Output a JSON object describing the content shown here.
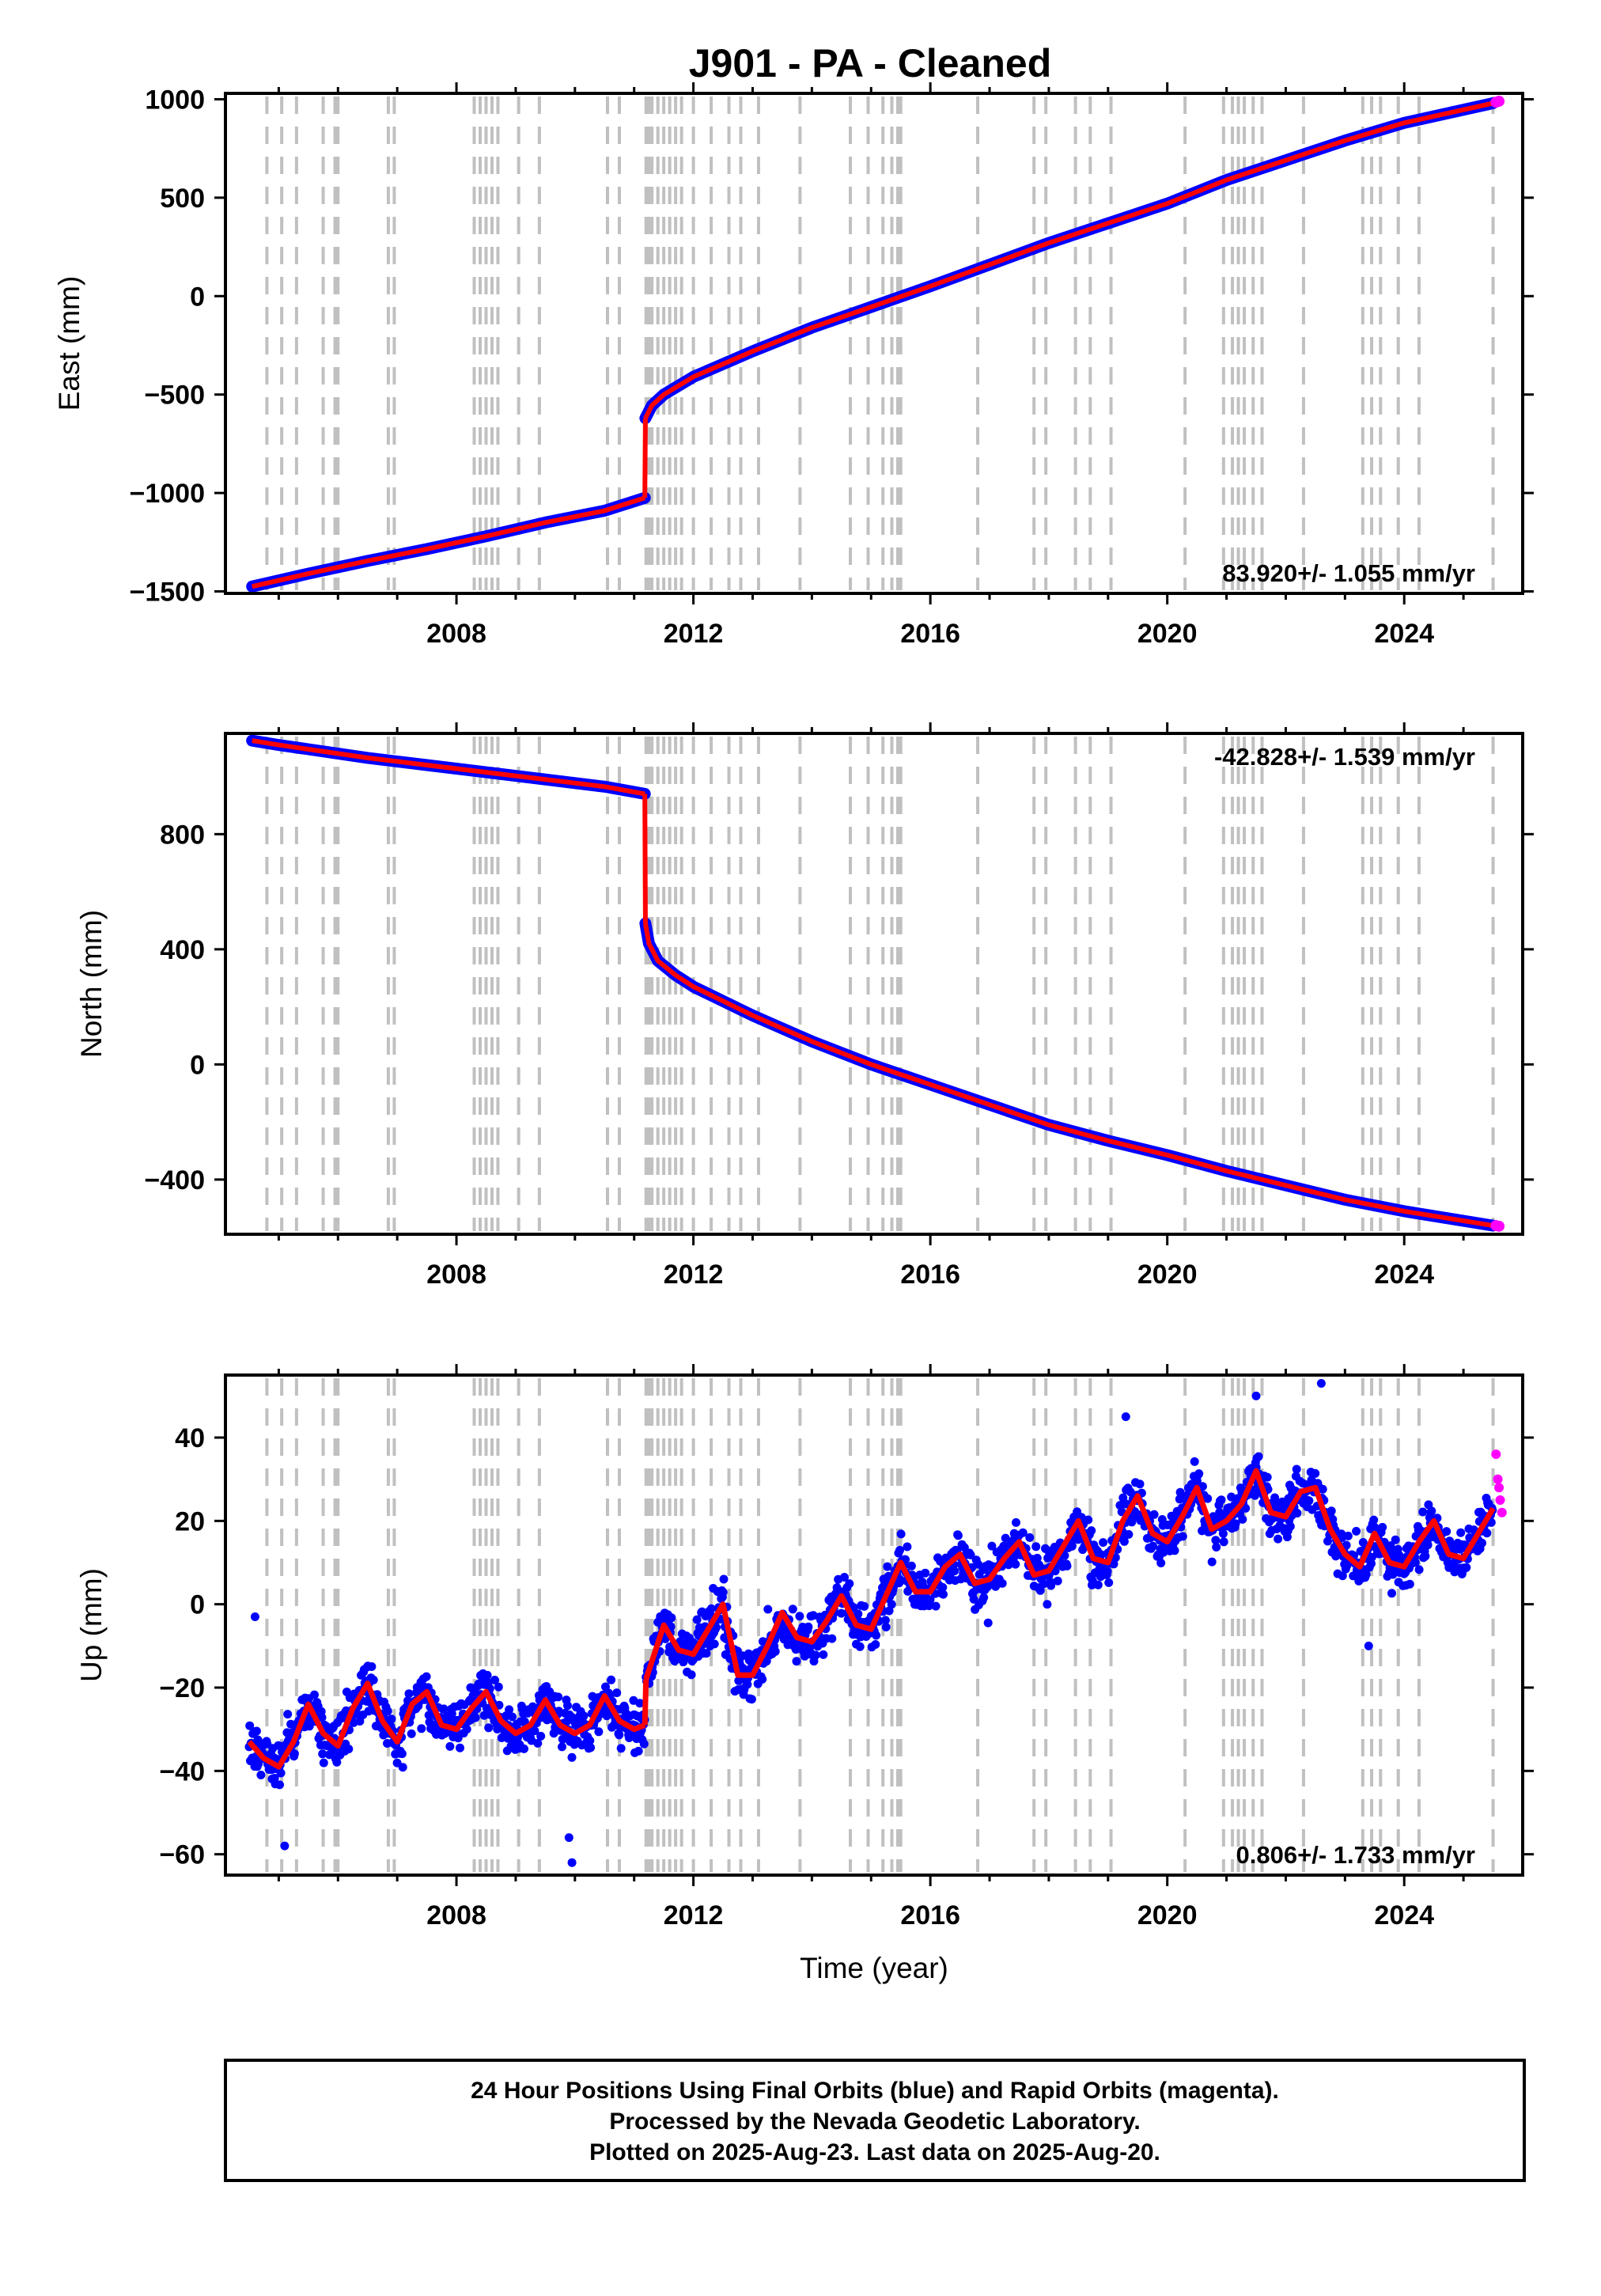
{
  "title": "J901  - PA - Cleaned",
  "colors": {
    "final": "#0000ff",
    "rapid": "#ff00ff",
    "trend": "#ff0000",
    "event_line": "#c0c0c0",
    "frame": "#000000"
  },
  "footer": {
    "line1": "24 Hour Positions Using Final Orbits (blue) and Rapid Orbits (magenta).",
    "line2": "Processed by the Nevada Geodetic Laboratory.",
    "line3": "Plotted on 2025-Aug-23. Last data on 2025-Aug-20."
  },
  "event_lines_years": [
    2004.8,
    2005.05,
    2005.3,
    2005.75,
    2005.95,
    2006.0,
    2006.85,
    2006.95,
    2008.3,
    2008.4,
    2008.5,
    2008.6,
    2008.7,
    2009.05,
    2009.4,
    2010.55,
    2010.75,
    2011.2,
    2011.25,
    2011.3,
    2011.4,
    2011.5,
    2011.6,
    2011.7,
    2011.8,
    2012.0,
    2012.3,
    2012.6,
    2012.8,
    2013.1,
    2013.8,
    2014.65,
    2014.95,
    2015.2,
    2015.35,
    2015.45,
    2015.5,
    2016.8,
    2017.75,
    2017.95,
    2018.45,
    2018.7,
    2019.05,
    2020.3,
    2020.95,
    2021.1,
    2021.2,
    2021.3,
    2021.45,
    2021.6,
    2022.3,
    2023.3,
    2023.45,
    2023.6,
    2023.9,
    2024.25,
    2025.5
  ],
  "chart_data": [
    {
      "type": "scatter",
      "component": "East",
      "ylabel": "East (mm)",
      "xlabel": "",
      "xlim": [
        2004.1,
        2026.0
      ],
      "ylim": [
        -1510,
        1030
      ],
      "x_ticks": [
        2008,
        2012,
        2016,
        2020,
        2024
      ],
      "y_ticks": [
        -1500,
        -1000,
        -500,
        0,
        500,
        1000
      ],
      "rate_text": "83.920+/- 1.055 mm/yr",
      "rate_position": "bottom-right",
      "series": [
        {
          "role": "final",
          "x": [
            2004.55,
            2005.5,
            2006.5,
            2007.5,
            2008.5,
            2009.5,
            2010.5,
            2011.18
          ],
          "y": [
            -1475,
            -1410,
            -1345,
            -1285,
            -1220,
            -1150,
            -1090,
            -1025
          ]
        },
        {
          "role": "final",
          "x": [
            2011.19,
            2011.3,
            2011.5,
            2012.0,
            2013.0,
            2014.0,
            2015.0,
            2016.0,
            2017.0,
            2018.0,
            2019.0,
            2020.0,
            2021.0,
            2022.0,
            2023.0,
            2024.0,
            2025.5
          ],
          "y": [
            -620,
            -555,
            -500,
            -410,
            -280,
            -160,
            -55,
            50,
            160,
            270,
            370,
            470,
            590,
            690,
            790,
            880,
            980
          ]
        },
        {
          "role": "rapid",
          "x": [
            2025.55,
            2025.6
          ],
          "y": [
            985,
            990
          ]
        }
      ]
    },
    {
      "type": "scatter",
      "component": "North",
      "ylabel": "North (mm)",
      "xlabel": "",
      "xlim": [
        2004.1,
        2026.0
      ],
      "ylim": [
        -590,
        1150
      ],
      "x_ticks": [
        2008,
        2012,
        2016,
        2020,
        2024
      ],
      "y_ticks": [
        -400,
        0,
        400,
        800
      ],
      "rate_text": "-42.828+/- 1.539 mm/yr",
      "rate_position": "top-right",
      "series": [
        {
          "role": "final",
          "x": [
            2004.55,
            2005.0,
            2005.5,
            2006.5,
            2007.5,
            2008.5,
            2009.5,
            2010.5,
            2011.18
          ],
          "y": [
            1125,
            1110,
            1095,
            1065,
            1040,
            1015,
            990,
            965,
            940
          ]
        },
        {
          "role": "final",
          "x": [
            2011.19,
            2011.25,
            2011.4,
            2011.7,
            2012.0,
            2013.0,
            2014.0,
            2015.0,
            2016.0,
            2017.0,
            2018.0,
            2019.0,
            2020.0,
            2021.0,
            2022.0,
            2023.0,
            2024.0,
            2025.5
          ],
          "y": [
            490,
            420,
            360,
            310,
            270,
            170,
            80,
            0,
            -70,
            -140,
            -210,
            -265,
            -315,
            -370,
            -420,
            -470,
            -510,
            -560
          ]
        },
        {
          "role": "rapid",
          "x": [
            2025.55,
            2025.6
          ],
          "y": [
            -560,
            -562
          ]
        }
      ]
    },
    {
      "type": "scatter",
      "component": "Up",
      "ylabel": "Up (mm)",
      "xlabel": "Time (year)",
      "xlim": [
        2004.1,
        2026.0
      ],
      "ylim": [
        -65,
        55
      ],
      "x_ticks": [
        2008,
        2012,
        2016,
        2020,
        2024
      ],
      "y_ticks": [
        -60,
        -40,
        -20,
        0,
        20,
        40
      ],
      "rate_text": "0.806+/- 1.733 mm/yr",
      "rate_position": "bottom-right",
      "series": [
        {
          "role": "trend",
          "x": [
            2004.5,
            2004.75,
            2005.0,
            2005.25,
            2005.5,
            2005.75,
            2006.0,
            2006.25,
            2006.5,
            2006.75,
            2007.0,
            2007.25,
            2007.5,
            2007.75,
            2008.0,
            2008.25,
            2008.5,
            2008.75,
            2009.0,
            2009.25,
            2009.5,
            2009.75,
            2010.0,
            2010.25,
            2010.5,
            2010.75,
            2011.0,
            2011.18
          ],
          "y": [
            -33,
            -37,
            -39,
            -33,
            -24,
            -31,
            -34,
            -25,
            -19,
            -28,
            -33,
            -24,
            -21,
            -29,
            -30,
            -25,
            -21,
            -28,
            -31,
            -29,
            -23,
            -29,
            -31,
            -29,
            -22,
            -28,
            -30,
            -29
          ]
        },
        {
          "role": "trend",
          "x": [
            2011.2,
            2011.5,
            2011.75,
            2012.0,
            2012.25,
            2012.5,
            2012.75,
            2013.0,
            2013.25,
            2013.5,
            2013.75,
            2014.0,
            2014.25,
            2014.5,
            2014.75,
            2015.0,
            2015.25,
            2015.5,
            2015.75,
            2016.0,
            2016.25,
            2016.5,
            2016.75,
            2017.0,
            2017.25,
            2017.5,
            2017.75,
            2018.0,
            2018.25,
            2018.5,
            2018.75,
            2019.0,
            2019.25,
            2019.5,
            2019.75,
            2020.0,
            2020.25,
            2020.5,
            2020.75,
            2021.0,
            2021.25,
            2021.5,
            2021.75,
            2022.0,
            2022.25,
            2022.5,
            2022.75,
            2023.0,
            2023.25,
            2023.5,
            2023.75,
            2024.0,
            2024.25,
            2024.5,
            2024.75,
            2025.0,
            2025.25,
            2025.5
          ],
          "y": [
            -18,
            -5,
            -11,
            -12,
            -6,
            0,
            -17,
            -17,
            -10,
            -2,
            -8,
            -9,
            -4,
            2,
            -5,
            -6,
            2,
            10,
            3,
            3,
            9,
            12,
            5,
            6,
            11,
            15,
            7,
            8,
            14,
            20,
            11,
            10,
            20,
            26,
            17,
            15,
            21,
            28,
            18,
            20,
            24,
            32,
            22,
            21,
            27,
            28,
            18,
            12,
            9,
            17,
            10,
            9,
            15,
            20,
            12,
            11,
            17,
            23
          ]
        },
        {
          "role": "rapid",
          "x": [
            2025.55,
            2025.58,
            2025.6,
            2025.62,
            2025.65
          ],
          "y": [
            36,
            30,
            28,
            25,
            22
          ]
        }
      ]
    }
  ]
}
